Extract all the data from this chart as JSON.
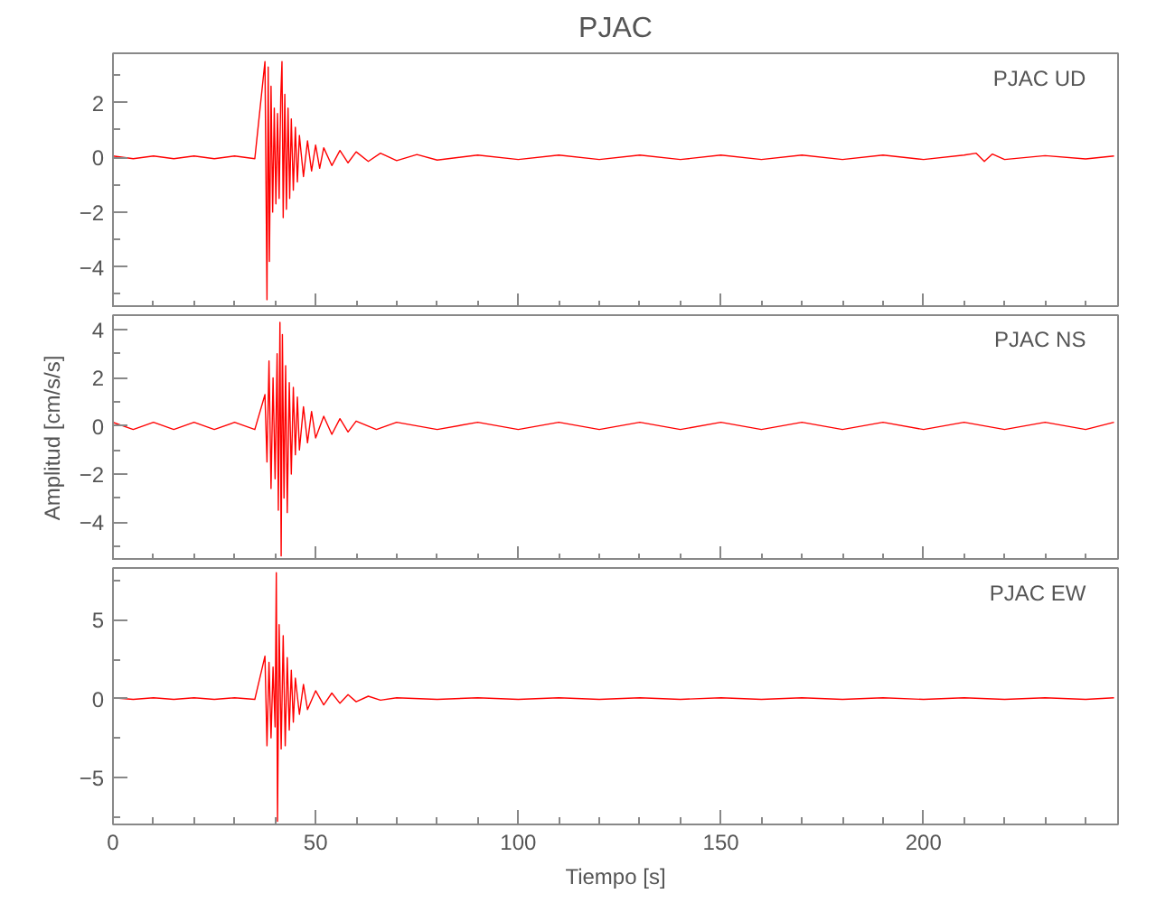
{
  "chart_data": [
    {
      "type": "line",
      "title": "PJAC",
      "annotations": [
        "PJAC   UD"
      ],
      "xlim": [
        0,
        248
      ],
      "ylim": [
        -5.5,
        3.8
      ],
      "tick_labels": "y",
      "grid": false,
      "xticks": [
        0,
        {
          "value": 10,
          "label": null
        },
        {
          "value": 20,
          "label": null
        },
        {
          "value": 30,
          "label": null
        },
        {
          "value": 40,
          "label": null
        },
        50,
        {
          "value": 60,
          "label": null
        },
        {
          "value": 70,
          "label": null
        },
        {
          "value": 80,
          "label": null
        },
        {
          "value": 90,
          "label": null
        },
        100,
        {
          "value": 110,
          "label": null
        },
        {
          "value": 120,
          "label": null
        },
        {
          "value": 130,
          "label": null
        },
        {
          "value": 140,
          "label": null
        },
        150,
        {
          "value": 160,
          "label": null
        },
        {
          "value": 170,
          "label": null
        },
        {
          "value": 180,
          "label": null
        },
        {
          "value": 190,
          "label": null
        },
        200,
        {
          "value": 210,
          "label": null
        },
        {
          "value": 220,
          "label": null
        },
        {
          "value": 230,
          "label": null
        },
        {
          "value": 240,
          "label": null
        }
      ],
      "yticks": [
        {
          "value": -5,
          "label": null
        },
        {
          "value": -4,
          "label": "−4"
        },
        {
          "value": -3,
          "label": null
        },
        {
          "value": -2,
          "label": "−2"
        },
        {
          "value": -1,
          "label": null
        },
        0,
        {
          "value": 1,
          "label": null
        },
        2,
        {
          "value": 3,
          "label": null
        }
      ],
      "series": [
        {
          "color": "#ff0000",
          "x": [
            0,
            5,
            10,
            15,
            20,
            25,
            30,
            35,
            37.5,
            38,
            38.3,
            38.6,
            39,
            39.4,
            39.8,
            40.2,
            40.6,
            41,
            41.4,
            41.7,
            42,
            42.4,
            42.8,
            43.2,
            43.6,
            44,
            44.5,
            45,
            45.5,
            46,
            47,
            48,
            49,
            50,
            51,
            52,
            54,
            56,
            58,
            60,
            63,
            66,
            70,
            75,
            80,
            90,
            100,
            110,
            120,
            130,
            140,
            150,
            160,
            170,
            180,
            190,
            200,
            210,
            213,
            215,
            217,
            220,
            230,
            240,
            247
          ],
          "values": [
            0.05,
            -0.05,
            0.05,
            -0.05,
            0.05,
            -0.05,
            0.05,
            -0.05,
            3.5,
            -5.2,
            3.3,
            -3.8,
            2.6,
            -2.0,
            1.8,
            -1.7,
            1.6,
            -1.5,
            2.2,
            3.5,
            -2.2,
            2.3,
            -1.9,
            1.8,
            -1.5,
            1.4,
            -1.2,
            1.1,
            -0.9,
            0.8,
            -0.7,
            0.6,
            -0.5,
            0.45,
            -0.4,
            0.35,
            -0.3,
            0.25,
            -0.2,
            0.2,
            -0.15,
            0.15,
            -0.12,
            0.1,
            -0.1,
            0.08,
            -0.08,
            0.08,
            -0.08,
            0.08,
            -0.08,
            0.08,
            -0.08,
            0.08,
            -0.08,
            0.08,
            -0.08,
            0.08,
            0.15,
            -0.15,
            0.12,
            -0.08,
            0.06,
            -0.06,
            0.05
          ]
        }
      ]
    },
    {
      "type": "line",
      "ylabel": "Amplitud [cm/s/s]",
      "annotations": [
        "PJAC   NS"
      ],
      "xlim": [
        0,
        248
      ],
      "ylim": [
        -5.6,
        4.6
      ],
      "tick_labels": "y",
      "grid": false,
      "xticks": [
        0,
        {
          "value": 10,
          "label": null
        },
        {
          "value": 20,
          "label": null
        },
        {
          "value": 30,
          "label": null
        },
        {
          "value": 40,
          "label": null
        },
        50,
        {
          "value": 60,
          "label": null
        },
        {
          "value": 70,
          "label": null
        },
        {
          "value": 80,
          "label": null
        },
        {
          "value": 90,
          "label": null
        },
        100,
        {
          "value": 110,
          "label": null
        },
        {
          "value": 120,
          "label": null
        },
        {
          "value": 130,
          "label": null
        },
        {
          "value": 140,
          "label": null
        },
        150,
        {
          "value": 160,
          "label": null
        },
        {
          "value": 170,
          "label": null
        },
        {
          "value": 180,
          "label": null
        },
        {
          "value": 190,
          "label": null
        },
        200,
        {
          "value": 210,
          "label": null
        },
        {
          "value": 220,
          "label": null
        },
        {
          "value": 230,
          "label": null
        },
        {
          "value": 240,
          "label": null
        }
      ],
      "yticks": [
        {
          "value": -5,
          "label": null
        },
        {
          "value": -4,
          "label": "−4"
        },
        {
          "value": -3,
          "label": null
        },
        {
          "value": -2,
          "label": "−2"
        },
        {
          "value": -1,
          "label": null
        },
        0,
        {
          "value": 1,
          "label": null
        },
        2,
        {
          "value": 3,
          "label": null
        },
        4
      ],
      "series": [
        {
          "color": "#ff0000",
          "x": [
            0,
            5,
            10,
            15,
            20,
            25,
            30,
            35,
            37.5,
            38,
            38.5,
            39,
            39.5,
            40,
            40.5,
            40.8,
            41.2,
            41.5,
            41.8,
            42.2,
            42.6,
            43,
            43.5,
            44,
            44.5,
            45,
            45.5,
            46,
            47,
            48,
            49,
            50,
            52,
            54,
            56,
            58,
            60,
            65,
            70,
            80,
            90,
            100,
            110,
            120,
            130,
            140,
            150,
            160,
            170,
            180,
            190,
            200,
            210,
            220,
            230,
            240,
            247
          ],
          "values": [
            0.15,
            -0.15,
            0.15,
            -0.15,
            0.15,
            -0.15,
            0.15,
            -0.15,
            1.3,
            -1.5,
            2.7,
            -2.6,
            2.0,
            -2.2,
            3.0,
            -3.5,
            4.3,
            -5.4,
            3.8,
            -3.0,
            2.5,
            -3.6,
            1.8,
            -2.0,
            1.6,
            -1.2,
            1.2,
            -1.0,
            0.8,
            -0.7,
            0.6,
            -0.5,
            0.4,
            -0.35,
            0.3,
            -0.25,
            0.2,
            -0.15,
            0.15,
            -0.15,
            0.15,
            -0.15,
            0.15,
            -0.15,
            0.15,
            -0.15,
            0.15,
            -0.15,
            0.15,
            -0.15,
            0.15,
            -0.15,
            0.15,
            -0.15,
            0.15,
            -0.15,
            0.15
          ]
        }
      ]
    },
    {
      "type": "line",
      "xlabel": "Tiempo [s]",
      "annotations": [
        "PJAC   EW"
      ],
      "xlim": [
        0,
        248
      ],
      "ylim": [
        -8.0,
        8.3
      ],
      "grid": false,
      "xticks": [
        0,
        {
          "value": 10,
          "label": null
        },
        {
          "value": 20,
          "label": null
        },
        {
          "value": 30,
          "label": null
        },
        {
          "value": 40,
          "label": null
        },
        50,
        {
          "value": 60,
          "label": null
        },
        {
          "value": 70,
          "label": null
        },
        {
          "value": 80,
          "label": null
        },
        {
          "value": 90,
          "label": null
        },
        100,
        {
          "value": 110,
          "label": null
        },
        {
          "value": 120,
          "label": null
        },
        {
          "value": 130,
          "label": null
        },
        {
          "value": 140,
          "label": null
        },
        150,
        {
          "value": 160,
          "label": null
        },
        {
          "value": 170,
          "label": null
        },
        {
          "value": 180,
          "label": null
        },
        {
          "value": 190,
          "label": null
        },
        200,
        {
          "value": 210,
          "label": null
        },
        {
          "value": 220,
          "label": null
        },
        {
          "value": 230,
          "label": null
        },
        {
          "value": 240,
          "label": null
        }
      ],
      "yticks": [
        {
          "value": -7.5,
          "label": null
        },
        {
          "value": -5,
          "label": "−5"
        },
        {
          "value": -2.5,
          "label": null
        },
        0,
        {
          "value": 2.5,
          "label": null
        },
        5,
        {
          "value": 7.5,
          "label": null
        }
      ],
      "series": [
        {
          "color": "#ff0000",
          "x": [
            0,
            5,
            10,
            15,
            20,
            25,
            30,
            35,
            37.5,
            38,
            38.5,
            39,
            39.5,
            40,
            40.3,
            40.6,
            41,
            41.5,
            42,
            42.5,
            43,
            43.5,
            44,
            44.5,
            45,
            46,
            47,
            48,
            50,
            52,
            54,
            56,
            58,
            60,
            63,
            66,
            70,
            80,
            90,
            100,
            110,
            120,
            130,
            140,
            150,
            160,
            170,
            180,
            190,
            200,
            210,
            220,
            230,
            240,
            247
          ],
          "values": [
            0.05,
            -0.05,
            0.05,
            -0.05,
            0.05,
            -0.05,
            0.05,
            -0.05,
            2.7,
            -3.0,
            2.3,
            -2.5,
            2.0,
            -1.8,
            8.0,
            -7.8,
            4.7,
            -3.2,
            4.0,
            -3.0,
            2.6,
            -2.0,
            1.8,
            -1.5,
            1.3,
            -1.0,
            0.9,
            -0.7,
            0.5,
            -0.4,
            0.35,
            -0.3,
            0.25,
            -0.2,
            0.15,
            -0.1,
            0.05,
            -0.05,
            0.05,
            -0.05,
            0.05,
            -0.05,
            0.05,
            -0.05,
            0.05,
            -0.05,
            0.05,
            -0.05,
            0.05,
            -0.05,
            0.05,
            -0.05,
            0.05,
            -0.05,
            0.05
          ]
        }
      ]
    }
  ]
}
